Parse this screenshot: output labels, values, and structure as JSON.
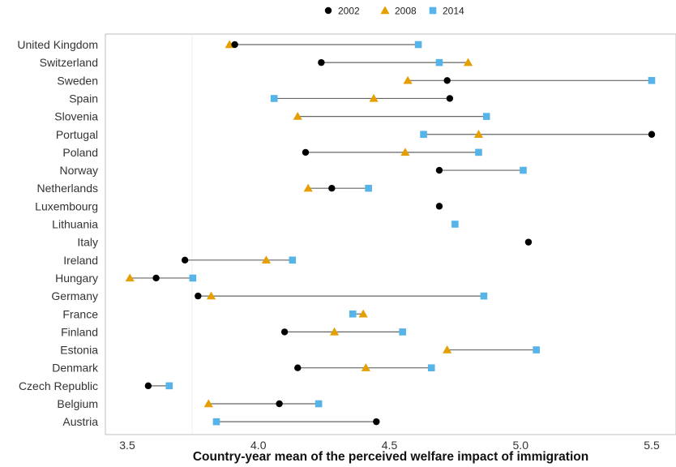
{
  "chart_data": {
    "type": "scatter",
    "subtype": "dumbbell",
    "xlabel": "Country-year mean of the perceived welfare impact of immigration",
    "xlim": [
      3.43,
      5.53
    ],
    "x_ticks": [
      3.5,
      4.0,
      4.5,
      5.0,
      5.5
    ],
    "x_tick_labels": [
      "3.5",
      "4.0",
      "4.5",
      "5.0",
      "5.5"
    ],
    "legend_position": "top-center",
    "grid": false,
    "colors": {
      "2002": "#000000",
      "2008": "#E69F00",
      "2014": "#56B4E9",
      "connector": "#666666"
    },
    "categories": [
      "United Kingdom",
      "Switzerland",
      "Sweden",
      "Spain",
      "Slovenia",
      "Portugal",
      "Poland",
      "Norway",
      "Netherlands",
      "Luxembourg",
      "Lithuania",
      "Italy",
      "Ireland",
      "Hungary",
      "Germany",
      "France",
      "Finland",
      "Estonia",
      "Denmark",
      "Czech Republic",
      "Belgium",
      "Austria"
    ],
    "series": [
      {
        "name": "2002",
        "marker": "circle",
        "values": [
          3.91,
          4.24,
          4.72,
          4.73,
          null,
          5.5,
          4.18,
          4.69,
          4.28,
          4.69,
          null,
          5.03,
          3.72,
          3.61,
          3.77,
          null,
          4.1,
          null,
          4.15,
          3.58,
          4.08,
          4.45
        ]
      },
      {
        "name": "2008",
        "marker": "triangle",
        "values": [
          3.89,
          4.8,
          4.57,
          4.44,
          4.15,
          4.84,
          4.56,
          null,
          4.19,
          null,
          null,
          null,
          4.03,
          3.51,
          3.82,
          4.4,
          4.29,
          4.72,
          4.41,
          null,
          3.81,
          null
        ]
      },
      {
        "name": "2014",
        "marker": "square",
        "values": [
          4.61,
          4.69,
          5.5,
          4.06,
          4.87,
          4.63,
          4.84,
          5.01,
          4.42,
          null,
          4.75,
          null,
          4.13,
          3.75,
          4.86,
          4.36,
          4.55,
          5.06,
          4.66,
          3.66,
          4.23,
          3.84
        ]
      }
    ]
  }
}
